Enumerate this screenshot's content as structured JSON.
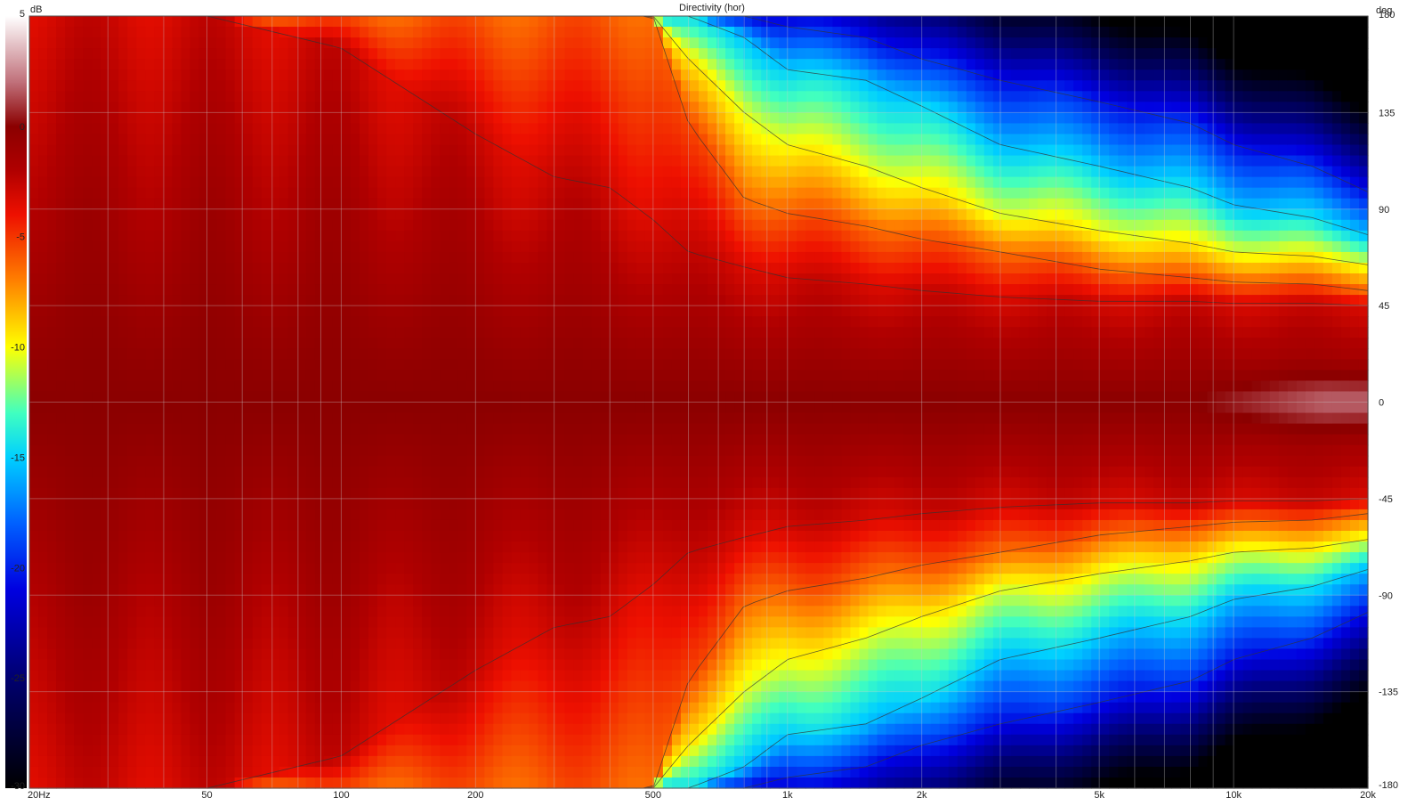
{
  "chart_data": {
    "type": "heatmap",
    "title": "Directivity (hor)",
    "colorbar": {
      "unit_label": "dB",
      "range": [
        -30,
        5
      ],
      "ticks": [
        "5",
        "0",
        "-5",
        "-10",
        "-15",
        "-20",
        "-25",
        "-30"
      ],
      "tick_values": [
        5,
        0,
        -5,
        -10,
        -15,
        -20,
        -25,
        -30
      ],
      "colors": [
        {
          "value": 5,
          "color": "#ffffff"
        },
        {
          "value": 2,
          "color": "#c0707a"
        },
        {
          "value": 0,
          "color": "#8b0000"
        },
        {
          "value": -2,
          "color": "#b00000"
        },
        {
          "value": -4,
          "color": "#ee1000"
        },
        {
          "value": -7,
          "color": "#ff8000"
        },
        {
          "value": -10,
          "color": "#ffff00"
        },
        {
          "value": -13,
          "color": "#40ffc0"
        },
        {
          "value": -15,
          "color": "#00d0ff"
        },
        {
          "value": -18,
          "color": "#0060ff"
        },
        {
          "value": -21,
          "color": "#0000e0"
        },
        {
          "value": -25,
          "color": "#000070"
        },
        {
          "value": -30,
          "color": "#000000"
        }
      ]
    },
    "x_axis": {
      "scale": "log",
      "range": [
        20,
        20000
      ],
      "ticks": [
        {
          "value": 20,
          "label": "20Hz"
        },
        {
          "value": 50,
          "label": "50"
        },
        {
          "value": 100,
          "label": "100"
        },
        {
          "value": 200,
          "label": "200"
        },
        {
          "value": 500,
          "label": "500"
        },
        {
          "value": 1000,
          "label": "1k"
        },
        {
          "value": 2000,
          "label": "2k"
        },
        {
          "value": 5000,
          "label": "5k"
        },
        {
          "value": 10000,
          "label": "10k"
        },
        {
          "value": 20000,
          "label": "20k"
        }
      ]
    },
    "y_axis": {
      "label": "deg",
      "range": [
        -180,
        180
      ],
      "ticks": [
        {
          "value": 180,
          "label": "180"
        },
        {
          "value": 135,
          "label": "135"
        },
        {
          "value": 90,
          "label": "90"
        },
        {
          "value": 45,
          "label": "45"
        },
        {
          "value": 0,
          "label": "0"
        },
        {
          "value": -45,
          "label": "-45"
        },
        {
          "value": -90,
          "label": "-90"
        },
        {
          "value": -135,
          "label": "-135"
        },
        {
          "value": -180,
          "label": "-180"
        }
      ]
    },
    "grid": true,
    "contour_lines": true,
    "beamwidth_deg": {
      "description": "approximate half-angle (deg) where level falls to -3, -6, -10, -15 and -20 dB",
      "frequencies": [
        20,
        50,
        100,
        200,
        300,
        400,
        500,
        600,
        800,
        1000,
        1500,
        2000,
        3000,
        5000,
        8000,
        10000,
        15000,
        20000
      ],
      "minus3": [
        180,
        180,
        165,
        125,
        105,
        100,
        85,
        70,
        63,
        58,
        55,
        52,
        49,
        47,
        47,
        46,
        46,
        45
      ],
      "minus6": [
        180,
        180,
        180,
        180,
        180,
        180,
        180,
        130,
        95,
        88,
        82,
        76,
        70,
        62,
        58,
        56,
        55,
        52
      ],
      "minus10": [
        180,
        180,
        180,
        180,
        180,
        180,
        180,
        160,
        135,
        120,
        110,
        100,
        88,
        80,
        74,
        70,
        68,
        64
      ],
      "minus15": [
        180,
        180,
        180,
        180,
        180,
        180,
        180,
        180,
        170,
        155,
        150,
        138,
        120,
        110,
        100,
        92,
        86,
        78
      ],
      "minus20": [
        180,
        180,
        180,
        180,
        180,
        180,
        180,
        180,
        180,
        175,
        170,
        160,
        150,
        140,
        130,
        120,
        110,
        98
      ]
    },
    "on_axis_peak": {
      "frequency_range": [
        8000,
        20000
      ],
      "level_db": 2
    }
  }
}
